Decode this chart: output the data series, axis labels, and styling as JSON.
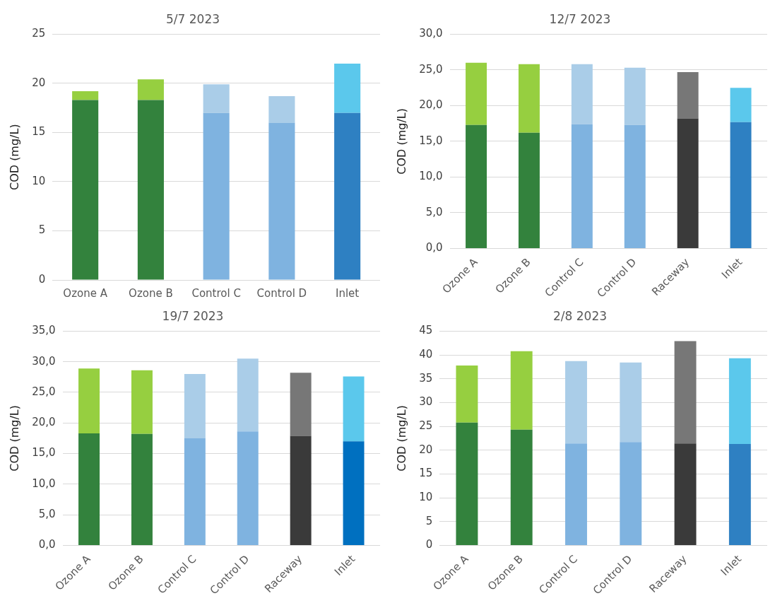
{
  "chart_data": [
    {
      "type": "bar",
      "title": "5/7 2023",
      "ylabel": "COD (mg/L)",
      "stacked": true,
      "grid": "y",
      "legend": false,
      "categories": [
        "Ozone A",
        "Ozone B",
        "Control C",
        "Control D",
        "Inlet"
      ],
      "ylim": [
        0,
        25
      ],
      "yticks": [
        0,
        5,
        10,
        15,
        20,
        25
      ],
      "series": [
        {
          "colors": [
            "#33823d",
            "#33823d",
            "#7fb3e0",
            "#7fb3e0",
            "#2e80c2"
          ],
          "values": [
            18.3,
            18.3,
            17.0,
            16.0,
            17.0
          ]
        },
        {
          "colors": [
            "#96cf40",
            "#96cf40",
            "#aacde8",
            "#aacde8",
            "#5bc8ec"
          ],
          "values": [
            0.9,
            2.1,
            2.9,
            2.7,
            5.0
          ]
        }
      ]
    },
    {
      "type": "bar",
      "title": "12/7 2023",
      "ylabel": "COD (mg/L)",
      "stacked": true,
      "grid": "y",
      "legend": false,
      "categories": [
        "Ozone A",
        "Ozone B",
        "Control C",
        "Control D",
        "Raceway",
        "Inlet"
      ],
      "ylim": [
        0,
        30
      ],
      "yticks": [
        {
          "value": 0,
          "label": "0,0"
        },
        {
          "value": 5,
          "label": "5,0"
        },
        {
          "value": 10,
          "label": "10,0"
        },
        {
          "value": 15,
          "label": "15,0"
        },
        {
          "value": 20,
          "label": "20,0"
        },
        {
          "value": 25,
          "label": "25,0"
        },
        {
          "value": 30,
          "label": "30,0"
        }
      ],
      "series": [
        {
          "colors": [
            "#33823d",
            "#33823d",
            "#7fb3e0",
            "#7fb3e0",
            "#3a3a3a",
            "#2e80c2"
          ],
          "values": [
            17.3,
            16.2,
            17.4,
            17.3,
            18.2,
            17.7
          ]
        },
        {
          "colors": [
            "#96cf40",
            "#96cf40",
            "#aacde8",
            "#aacde8",
            "#777777",
            "#5bc8ec"
          ],
          "values": [
            8.7,
            9.6,
            8.4,
            8.0,
            6.5,
            4.8
          ]
        }
      ]
    },
    {
      "type": "bar",
      "title": "19/7 2023",
      "ylabel": "COD (mg/L)",
      "stacked": true,
      "grid": "y",
      "legend": false,
      "categories": [
        "Ozone A",
        "Ozone B",
        "Control C",
        "Control D",
        "Raceway",
        "Inlet"
      ],
      "ylim": [
        0,
        35
      ],
      "yticks": [
        {
          "value": 0,
          "label": "0,0"
        },
        {
          "value": 5,
          "label": "5,0"
        },
        {
          "value": 10,
          "label": "10,0"
        },
        {
          "value": 15,
          "label": "15,0"
        },
        {
          "value": 20,
          "label": "20,0"
        },
        {
          "value": 25,
          "label": "25,0"
        },
        {
          "value": 30,
          "label": "30,0"
        },
        {
          "value": 35,
          "label": "35,0"
        }
      ],
      "series": [
        {
          "colors": [
            "#33823d",
            "#33823d",
            "#7fb3e0",
            "#7fb3e0",
            "#3a3a3a",
            "#0070c0"
          ],
          "values": [
            18.3,
            18.2,
            17.5,
            18.6,
            17.9,
            17.0
          ]
        },
        {
          "colors": [
            "#96cf40",
            "#96cf40",
            "#aacde8",
            "#aacde8",
            "#777777",
            "#5bc8ec"
          ],
          "values": [
            10.6,
            10.4,
            10.5,
            11.9,
            10.3,
            10.6
          ]
        }
      ]
    },
    {
      "type": "bar",
      "title": "2/8 2023",
      "ylabel": "COD (mg/L)",
      "stacked": true,
      "grid": "y",
      "legend": false,
      "categories": [
        "Ozone A",
        "Ozone B",
        "Control C",
        "Control D",
        "Raceway",
        "Inlet"
      ],
      "ylim": [
        0,
        45
      ],
      "yticks": [
        0,
        5,
        10,
        15,
        20,
        25,
        30,
        35,
        40,
        45
      ],
      "series": [
        {
          "colors": [
            "#33823d",
            "#33823d",
            "#7fb3e0",
            "#7fb3e0",
            "#3a3a3a",
            "#2e80c2"
          ],
          "values": [
            25.8,
            24.3,
            21.4,
            21.7,
            21.4,
            21.3
          ]
        },
        {
          "colors": [
            "#96cf40",
            "#96cf40",
            "#aacde8",
            "#aacde8",
            "#777777",
            "#5bc8ec"
          ],
          "values": [
            12.0,
            16.5,
            17.3,
            16.7,
            21.5,
            18.0
          ]
        }
      ]
    }
  ]
}
